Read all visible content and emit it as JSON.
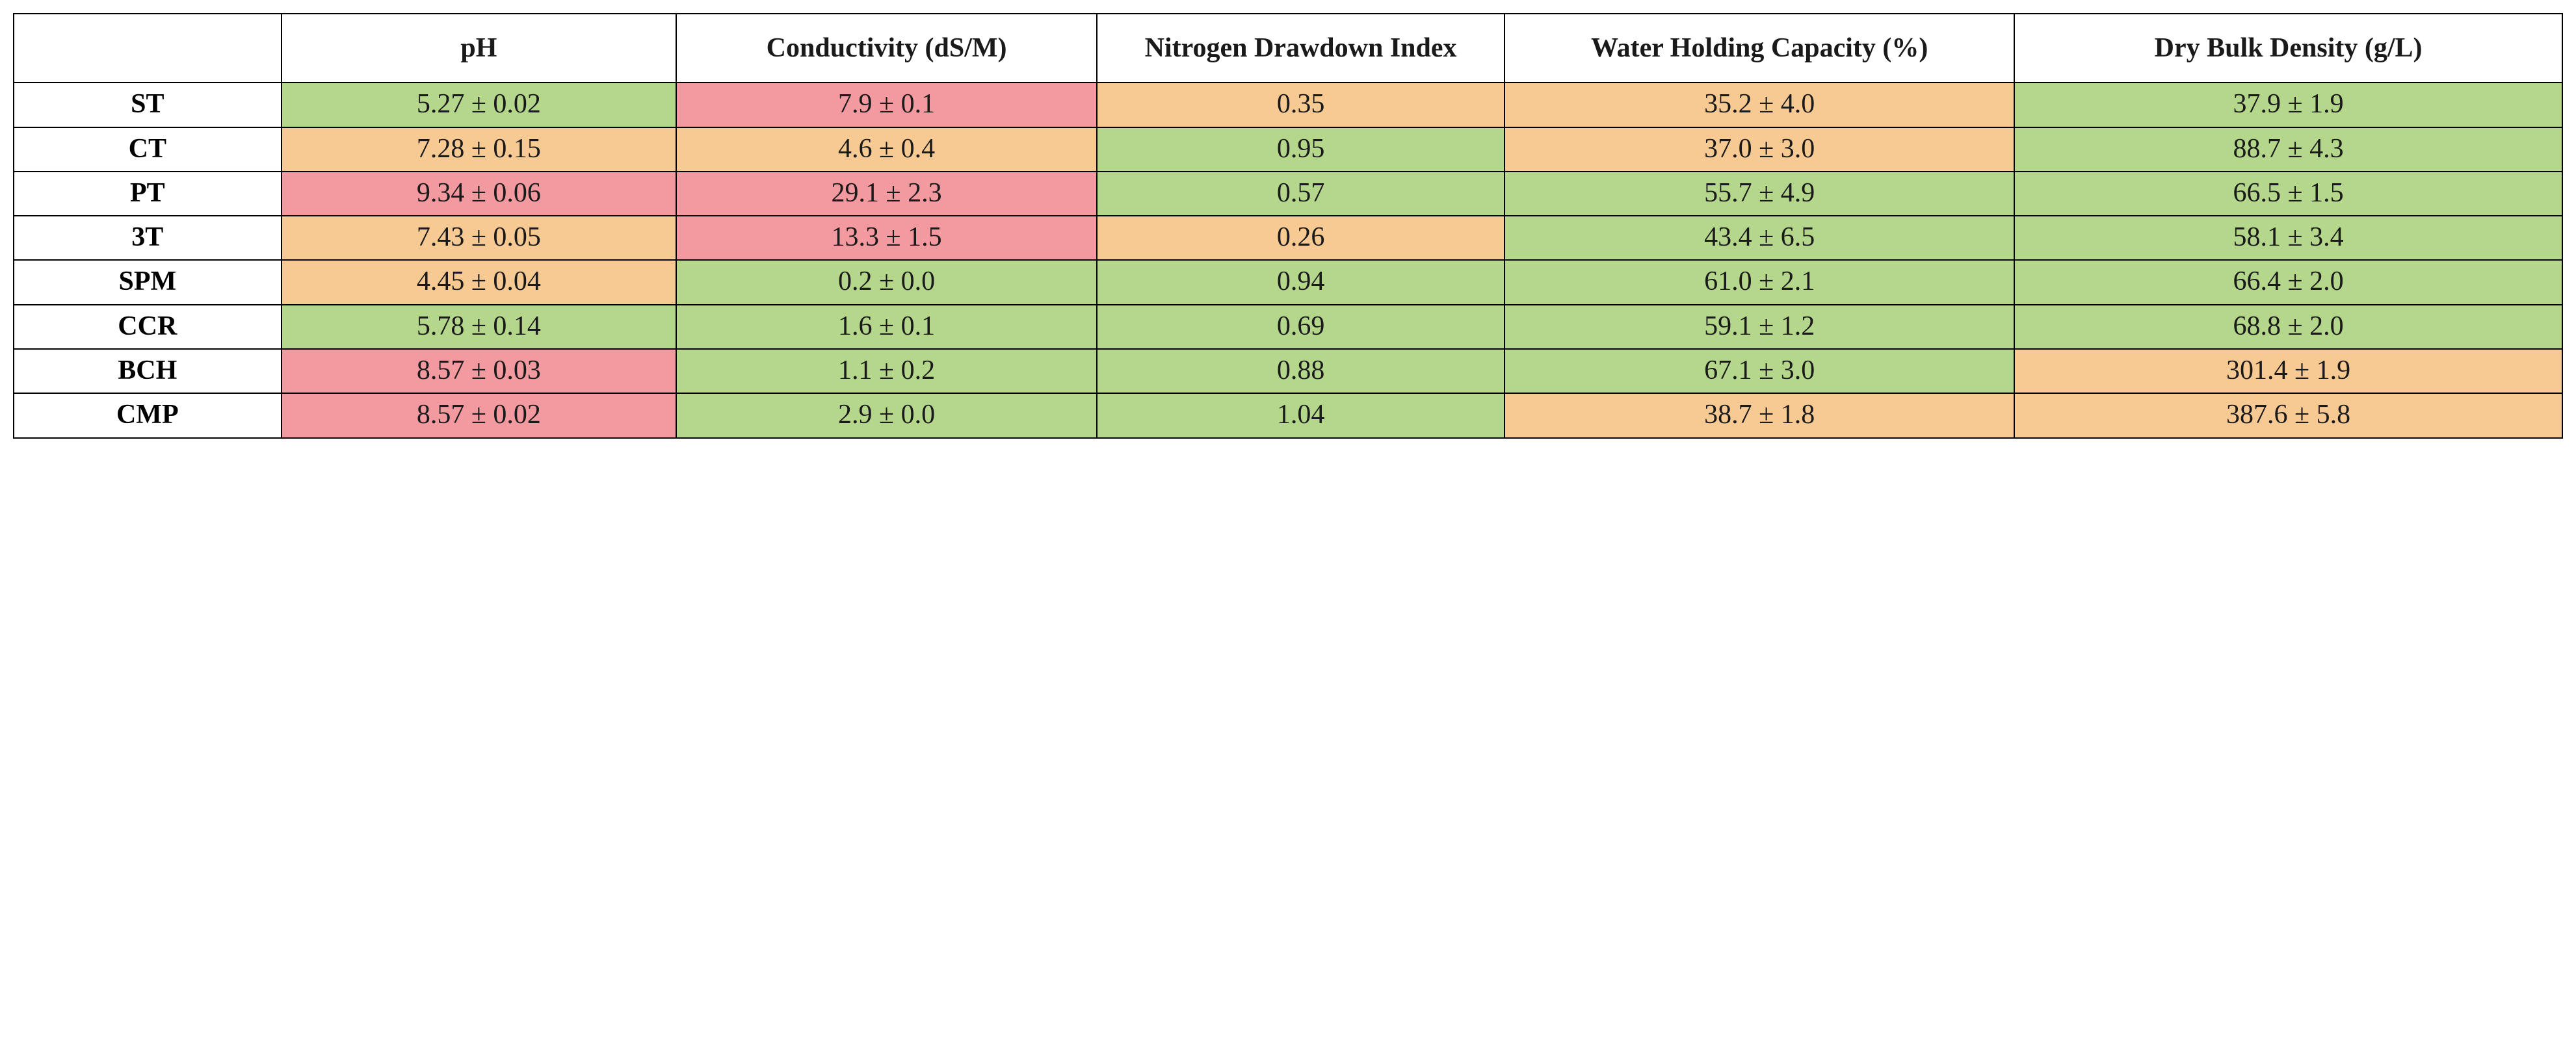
{
  "table": {
    "type": "table",
    "colors": {
      "green": "#b5d78c",
      "orange": "#f7c993",
      "pink": "#f29aa0",
      "border": "#000000",
      "background": "#ffffff",
      "text": "#1a1a1a"
    },
    "font": {
      "family": "Times New Roman",
      "header_weight": "bold",
      "cell_weight": "normal",
      "header_size_pt": 32,
      "cell_size_pt": 32
    },
    "columns": [
      {
        "key": "label",
        "header": ""
      },
      {
        "key": "ph",
        "header": "pH"
      },
      {
        "key": "cond",
        "header": "Conductivity (dS/M)"
      },
      {
        "key": "ndi",
        "header": "Nitrogen Drawdown Index"
      },
      {
        "key": "whc",
        "header": "Water Holding Capacity (%)"
      },
      {
        "key": "dbd",
        "header": "Dry Bulk Density (g/L)"
      }
    ],
    "rows": [
      {
        "label": "ST",
        "cells": [
          {
            "text": "5.27 ± 0.02",
            "color": "green"
          },
          {
            "text": "7.9 ± 0.1",
            "color": "pink"
          },
          {
            "text": "0.35",
            "color": "orange"
          },
          {
            "text": "35.2 ± 4.0",
            "color": "orange"
          },
          {
            "text": "37.9 ± 1.9",
            "color": "green"
          }
        ]
      },
      {
        "label": "CT",
        "cells": [
          {
            "text": "7.28 ± 0.15",
            "color": "orange"
          },
          {
            "text": "4.6 ± 0.4",
            "color": "orange"
          },
          {
            "text": "0.95",
            "color": "green"
          },
          {
            "text": "37.0 ± 3.0",
            "color": "orange"
          },
          {
            "text": "88.7 ± 4.3",
            "color": "green"
          }
        ]
      },
      {
        "label": "PT",
        "cells": [
          {
            "text": "9.34 ± 0.06",
            "color": "pink"
          },
          {
            "text": "29.1 ± 2.3",
            "color": "pink"
          },
          {
            "text": "0.57",
            "color": "green"
          },
          {
            "text": "55.7 ± 4.9",
            "color": "green"
          },
          {
            "text": "66.5 ± 1.5",
            "color": "green"
          }
        ]
      },
      {
        "label": "3T",
        "cells": [
          {
            "text": "7.43 ± 0.05",
            "color": "orange"
          },
          {
            "text": "13.3 ± 1.5",
            "color": "pink"
          },
          {
            "text": "0.26",
            "color": "orange"
          },
          {
            "text": "43.4 ± 6.5",
            "color": "green"
          },
          {
            "text": "58.1 ± 3.4",
            "color": "green"
          }
        ]
      },
      {
        "label": "SPM",
        "cells": [
          {
            "text": "4.45 ± 0.04",
            "color": "orange"
          },
          {
            "text": "0.2 ± 0.0",
            "color": "green"
          },
          {
            "text": "0.94",
            "color": "green"
          },
          {
            "text": "61.0 ± 2.1",
            "color": "green"
          },
          {
            "text": "66.4 ± 2.0",
            "color": "green"
          }
        ]
      },
      {
        "label": "CCR",
        "cells": [
          {
            "text": "5.78 ± 0.14",
            "color": "green"
          },
          {
            "text": "1.6 ± 0.1",
            "color": "green"
          },
          {
            "text": "0.69",
            "color": "green"
          },
          {
            "text": "59.1 ± 1.2",
            "color": "green"
          },
          {
            "text": "68.8 ± 2.0",
            "color": "green"
          }
        ]
      },
      {
        "label": "BCH",
        "cells": [
          {
            "text": "8.57 ± 0.03",
            "color": "pink"
          },
          {
            "text": "1.1 ± 0.2",
            "color": "green"
          },
          {
            "text": "0.88",
            "color": "green"
          },
          {
            "text": "67.1 ± 3.0",
            "color": "green"
          },
          {
            "text": "301.4 ± 1.9",
            "color": "orange"
          }
        ]
      },
      {
        "label": "CMP",
        "cells": [
          {
            "text": "8.57 ± 0.02",
            "color": "pink"
          },
          {
            "text": "2.9 ± 0.0",
            "color": "green"
          },
          {
            "text": "1.04",
            "color": "green"
          },
          {
            "text": "38.7 ± 1.8",
            "color": "orange"
          },
          {
            "text": "387.6 ± 5.8",
            "color": "orange"
          }
        ]
      }
    ]
  }
}
